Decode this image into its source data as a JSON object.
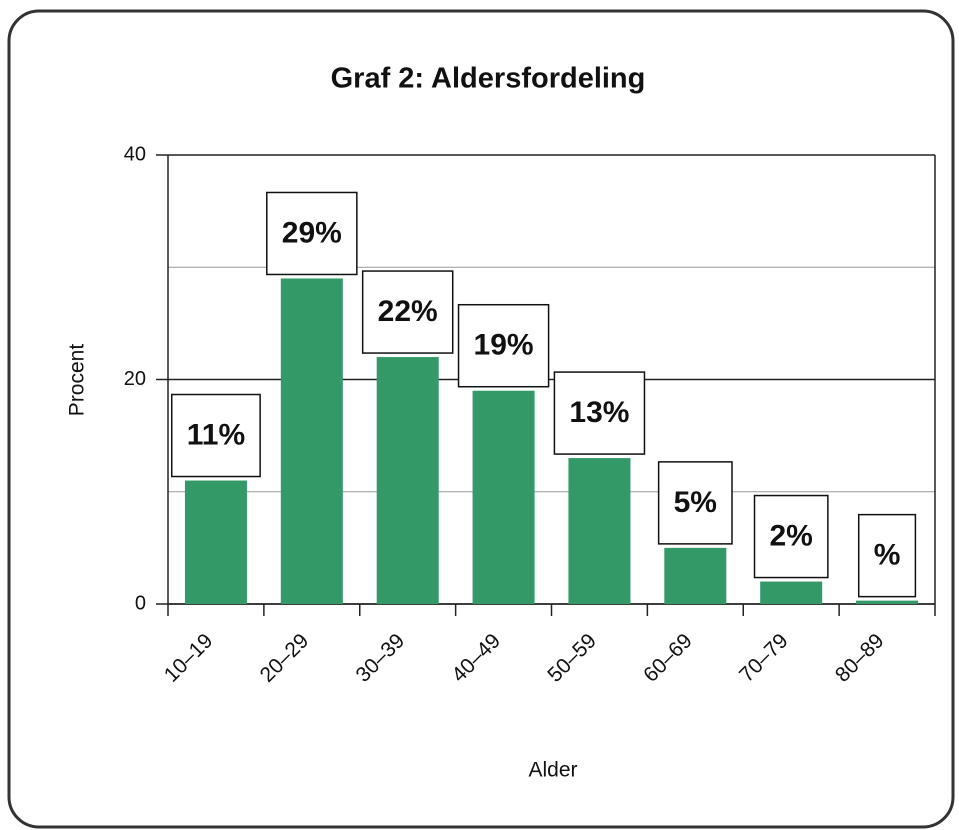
{
  "chart_data": {
    "type": "bar",
    "title": "Graf 2: Aldersfordeling",
    "x_label": "Alder",
    "y_label": "Procent",
    "categories": [
      "10–19",
      "20–29",
      "30–39",
      "40–49",
      "50–59",
      "60–69",
      "70–79",
      "80–89"
    ],
    "values": [
      11,
      29,
      22,
      19,
      13,
      5,
      2,
      0.3
    ],
    "value_labels": [
      "11%",
      "29%",
      "22%",
      "19%",
      "13%",
      "5%",
      "2%",
      "%"
    ],
    "color": "#339966",
    "ylim": [
      0,
      40
    ],
    "yticks": [
      0,
      20,
      40
    ],
    "minor_yticks": [
      10,
      30
    ],
    "grid": true
  }
}
